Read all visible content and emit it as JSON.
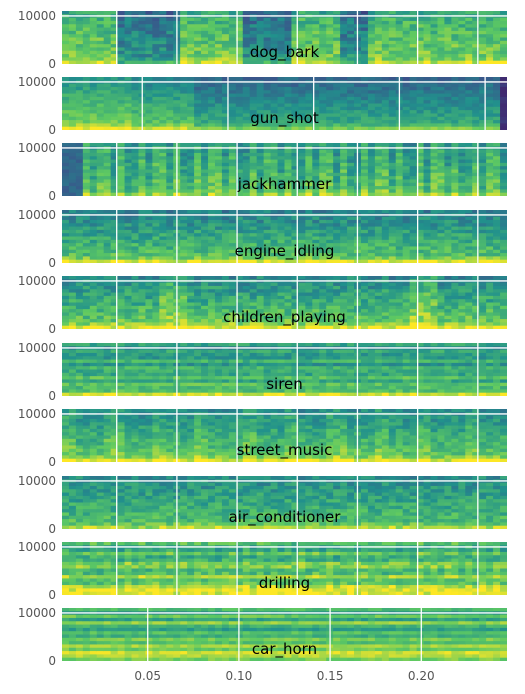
{
  "chart_data": {
    "type": "heatmap",
    "layout": "10 stacked spectrogram panels sharing x-axis",
    "x_range": [
      0.003,
      0.247
    ],
    "y_range": [
      0,
      11025
    ],
    "grid": true,
    "colormap": [
      "#440154",
      "#3b528b",
      "#21918c",
      "#5ec962",
      "#fde725"
    ],
    "shared_x_ticks": [
      "0.05",
      "0.10",
      "0.15",
      "0.20"
    ],
    "shared_x_tick_values": [
      0.05,
      0.1,
      0.15,
      0.2
    ],
    "panels": [
      {
        "title": "dog_bark",
        "yticks": [
          "10000",
          "0"
        ],
        "ytick_values": [
          10000,
          0
        ],
        "x_gridlines": [
          0.033,
          0.066,
          0.099,
          0.132,
          0.165,
          0.198,
          0.231
        ]
      },
      {
        "title": "gun_shot",
        "yticks": [
          "10000",
          "0"
        ],
        "ytick_values": [
          10000,
          0
        ],
        "x_gridlines": [
          0.047,
          0.094,
          0.141,
          0.188,
          0.235
        ]
      },
      {
        "title": "jackhammer",
        "yticks": [
          "10000",
          "0"
        ],
        "ytick_values": [
          10000,
          0
        ],
        "x_gridlines": [
          0.033,
          0.066,
          0.099,
          0.132,
          0.165,
          0.198,
          0.231
        ]
      },
      {
        "title": "engine_idling",
        "yticks": [
          "10000",
          "0"
        ],
        "ytick_values": [
          10000,
          0
        ],
        "x_gridlines": [
          0.033,
          0.066,
          0.099,
          0.132,
          0.165,
          0.198,
          0.231
        ]
      },
      {
        "title": "children_playing",
        "yticks": [
          "10000",
          "0"
        ],
        "ytick_values": [
          10000,
          0
        ],
        "x_gridlines": [
          0.033,
          0.066,
          0.099,
          0.132,
          0.165,
          0.198,
          0.231
        ]
      },
      {
        "title": "siren",
        "yticks": [
          "10000",
          "0"
        ],
        "ytick_values": [
          10000,
          0
        ],
        "x_gridlines": [
          0.033,
          0.066,
          0.099,
          0.132,
          0.165,
          0.198,
          0.231
        ]
      },
      {
        "title": "street_music",
        "yticks": [
          "10000",
          "0"
        ],
        "ytick_values": [
          10000,
          0
        ],
        "x_gridlines": [
          0.033,
          0.066,
          0.099,
          0.132,
          0.165,
          0.198,
          0.231
        ]
      },
      {
        "title": "air_conditioner",
        "yticks": [
          "10000",
          "0"
        ],
        "ytick_values": [
          10000,
          0
        ],
        "x_gridlines": [
          0.033,
          0.066,
          0.099,
          0.132,
          0.165,
          0.198,
          0.231
        ]
      },
      {
        "title": "drilling",
        "yticks": [
          "10000",
          "0"
        ],
        "ytick_values": [
          10000,
          0
        ],
        "x_gridlines": [
          0.033,
          0.066,
          0.099,
          0.132,
          0.165,
          0.198,
          0.231
        ]
      },
      {
        "title": "car_horn",
        "yticks": [
          "10000",
          "0"
        ],
        "ytick_values": [
          10000,
          0
        ],
        "x_gridlines": [
          0.05,
          0.1,
          0.15,
          0.2
        ]
      }
    ]
  }
}
